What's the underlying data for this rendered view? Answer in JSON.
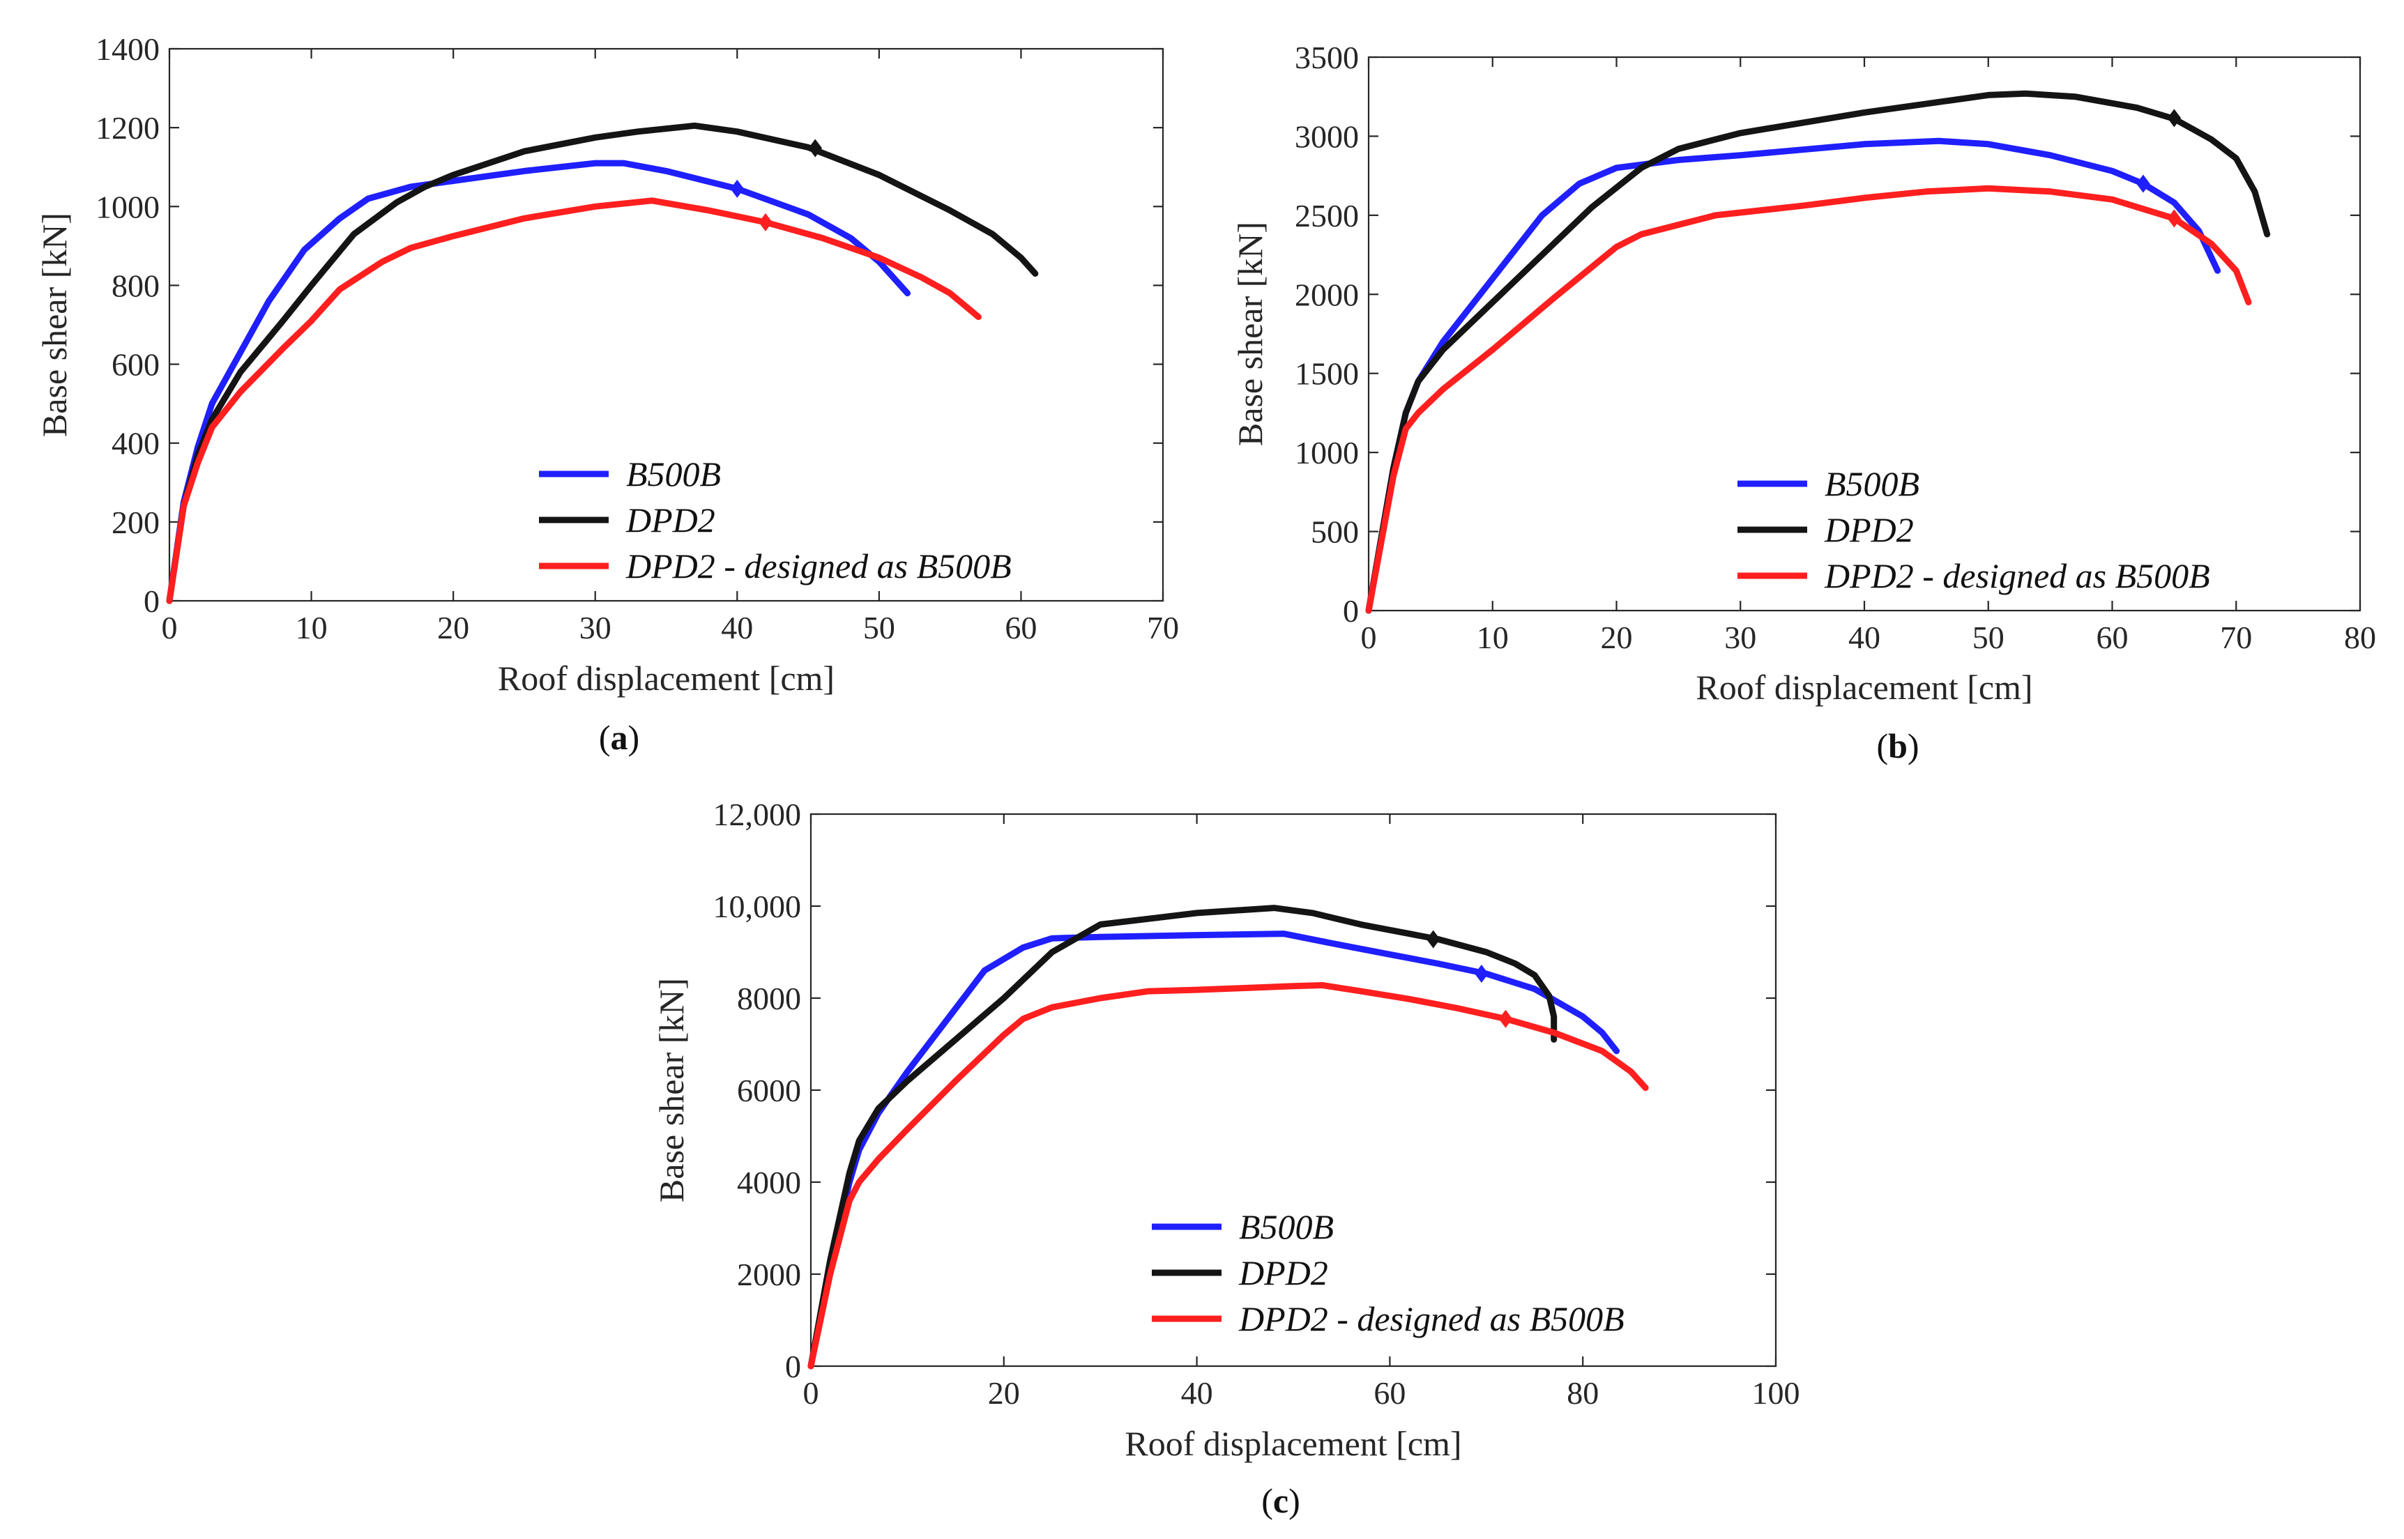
{
  "colors": {
    "B500B": "#1f1fff",
    "DPD2": "#141414",
    "DPD2_designed_as_B500B": "#ff1f1f",
    "axis": "#262626"
  },
  "chart_data": [
    {
      "type": "line",
      "panel": "a",
      "caption_letter": "a",
      "xlabel": "Roof displacement [cm]",
      "ylabel": "Base shear [kN]",
      "xlim": [
        0,
        70
      ],
      "ylim": [
        0,
        1400
      ],
      "xticks": [
        0,
        10,
        20,
        30,
        40,
        50,
        60,
        70
      ],
      "yticks": [
        0,
        200,
        400,
        600,
        800,
        1000,
        1200,
        1400
      ],
      "xtick_labels": [
        "0",
        "10",
        "20",
        "30",
        "40",
        "50",
        "60",
        "70"
      ],
      "ytick_labels": [
        "0",
        "200",
        "400",
        "600",
        "800",
        "1000",
        "1200",
        "1400"
      ],
      "legend": {
        "position": "bottom-right",
        "entries": [
          "B500B",
          "DPD2",
          "DPD2 - designed as B500B"
        ]
      },
      "series": [
        {
          "name": "B500B",
          "color": "#1f1fff",
          "x": [
            0,
            1,
            2,
            3,
            5,
            7,
            9.5,
            12,
            14,
            17,
            20,
            25,
            30,
            32,
            35,
            40,
            45,
            48,
            50,
            52
          ],
          "y": [
            0,
            250,
            390,
            500,
            630,
            760,
            890,
            970,
            1020,
            1050,
            1065,
            1090,
            1110,
            1110,
            1090,
            1045,
            980,
            920,
            860,
            780
          ],
          "marker": {
            "x": 40,
            "y": 1045
          }
        },
        {
          "name": "DPD2",
          "color": "#141414",
          "x": [
            0,
            1,
            2,
            3,
            5,
            8,
            10,
            13,
            16,
            18,
            20,
            25,
            30,
            33,
            37,
            40,
            45,
            50,
            55,
            58,
            60,
            61
          ],
          "y": [
            0,
            240,
            370,
            460,
            580,
            710,
            800,
            930,
            1010,
            1050,
            1080,
            1140,
            1175,
            1190,
            1205,
            1190,
            1150,
            1080,
            990,
            930,
            870,
            830
          ],
          "marker": {
            "x": 45.5,
            "y": 1148
          }
        },
        {
          "name": "DPD2 - designed as B500B",
          "color": "#ff1f1f",
          "x": [
            0,
            1,
            2,
            3,
            5,
            8,
            10,
            12,
            15,
            17,
            20,
            25,
            30,
            34,
            38,
            42,
            46,
            50,
            53,
            55,
            57
          ],
          "y": [
            0,
            240,
            350,
            440,
            530,
            640,
            710,
            790,
            860,
            895,
            925,
            970,
            1000,
            1015,
            990,
            960,
            920,
            870,
            820,
            780,
            720
          ],
          "marker": {
            "x": 42,
            "y": 960
          }
        }
      ]
    },
    {
      "type": "line",
      "panel": "b",
      "caption_letter": "b",
      "xlabel": "Roof displacement [cm]",
      "ylabel": "Base shear [kN]",
      "xlim": [
        0,
        80
      ],
      "ylim": [
        0,
        3500
      ],
      "xticks": [
        0,
        10,
        20,
        30,
        40,
        50,
        60,
        70,
        80
      ],
      "yticks": [
        0,
        500,
        1000,
        1500,
        2000,
        2500,
        3000,
        3500
      ],
      "xtick_labels": [
        "0",
        "10",
        "20",
        "30",
        "40",
        "50",
        "60",
        "70",
        "80"
      ],
      "ytick_labels": [
        "0",
        "500",
        "1000",
        "1500",
        "2000",
        "2500",
        "3000",
        "3500"
      ],
      "legend": {
        "position": "bottom-right",
        "entries": [
          "B500B",
          "DPD2",
          "DPD2 - designed as B500B"
        ]
      },
      "series": [
        {
          "name": "B500B",
          "color": "#1f1fff",
          "x": [
            0,
            2,
            3,
            4,
            6,
            10,
            14,
            17,
            20,
            25,
            30,
            40,
            46,
            50,
            55,
            60,
            62.5,
            65,
            67,
            68.5
          ],
          "y": [
            0,
            900,
            1250,
            1450,
            1700,
            2100,
            2500,
            2700,
            2800,
            2850,
            2880,
            2950,
            2970,
            2950,
            2880,
            2780,
            2700,
            2580,
            2400,
            2150
          ],
          "marker": {
            "x": 62.5,
            "y": 2700
          }
        },
        {
          "name": "DPD2",
          "color": "#141414",
          "x": [
            0,
            2,
            3,
            4,
            6,
            10,
            14,
            18,
            22,
            25,
            30,
            40,
            50,
            53,
            57,
            62,
            65,
            68,
            70,
            71.5,
            72.5
          ],
          "y": [
            0,
            900,
            1250,
            1450,
            1650,
            1950,
            2250,
            2550,
            2800,
            2920,
            3020,
            3150,
            3260,
            3270,
            3250,
            3180,
            3110,
            2980,
            2860,
            2650,
            2380
          ],
          "marker": {
            "x": 65,
            "y": 3115
          }
        },
        {
          "name": "DPD2 - designed as B500B",
          "color": "#ff1f1f",
          "x": [
            0,
            2,
            3,
            4,
            6,
            10,
            15,
            20,
            22,
            28,
            35,
            40,
            45,
            50,
            55,
            60,
            65,
            68,
            70,
            71
          ],
          "y": [
            0,
            850,
            1150,
            1250,
            1400,
            1650,
            1980,
            2300,
            2380,
            2500,
            2560,
            2610,
            2650,
            2670,
            2650,
            2600,
            2480,
            2320,
            2150,
            1950
          ],
          "marker": {
            "x": 65,
            "y": 2480
          }
        }
      ]
    },
    {
      "type": "line",
      "panel": "c",
      "caption_letter": "c",
      "xlabel": "Roof displacement [cm]",
      "ylabel": "Base shear [kN]",
      "xlim": [
        0,
        100
      ],
      "ylim": [
        0,
        12000
      ],
      "xticks": [
        0,
        20,
        40,
        60,
        80,
        100
      ],
      "yticks": [
        0,
        2000,
        4000,
        6000,
        8000,
        10000,
        12000
      ],
      "xtick_labels": [
        "0",
        "20",
        "40",
        "60",
        "80",
        "100"
      ],
      "ytick_labels": [
        "0",
        "2000",
        "4000",
        "6000",
        "8000",
        "10,000",
        "12,000"
      ],
      "legend": {
        "position": "bottom-right",
        "entries": [
          "B500B",
          "DPD2",
          "DPD2 - designed as B500B"
        ]
      },
      "series": [
        {
          "name": "B500B",
          "color": "#1f1fff",
          "x": [
            0,
            2,
            4,
            5,
            7,
            10,
            14,
            18,
            22,
            25,
            30,
            40,
            49,
            55,
            60,
            65,
            70,
            75,
            80,
            82,
            83.5
          ],
          "y": [
            0,
            2200,
            4000,
            4700,
            5500,
            6400,
            7500,
            8600,
            9100,
            9300,
            9330,
            9370,
            9400,
            9150,
            8950,
            8750,
            8530,
            8200,
            7600,
            7250,
            6850
          ],
          "marker": {
            "x": 69.5,
            "y": 8530
          }
        },
        {
          "name": "DPD2",
          "color": "#141414",
          "x": [
            0,
            2,
            4,
            5,
            7,
            10,
            15,
            20,
            25,
            30,
            40,
            48,
            52,
            57,
            62,
            65,
            70,
            73,
            75,
            76.5,
            77,
            77
          ],
          "y": [
            0,
            2300,
            4200,
            4900,
            5600,
            6200,
            7100,
            8000,
            9000,
            9600,
            9850,
            9960,
            9850,
            9600,
            9400,
            9280,
            9000,
            8750,
            8500,
            8050,
            7600,
            7100
          ],
          "marker": {
            "x": 64.5,
            "y": 9280
          }
        },
        {
          "name": "DPD2 - designed as B500B",
          "color": "#ff1f1f",
          "x": [
            0,
            2,
            4,
            5,
            7,
            10,
            15,
            20,
            22,
            25,
            30,
            35,
            40,
            45,
            50,
            53,
            57,
            62,
            67,
            72,
            77,
            82,
            85,
            86.5
          ],
          "y": [
            0,
            2000,
            3600,
            4000,
            4500,
            5150,
            6200,
            7200,
            7550,
            7800,
            8000,
            8150,
            8180,
            8220,
            8260,
            8280,
            8150,
            7980,
            7780,
            7550,
            7250,
            6850,
            6400,
            6050
          ],
          "marker": {
            "x": 72,
            "y": 7550
          }
        }
      ]
    }
  ]
}
